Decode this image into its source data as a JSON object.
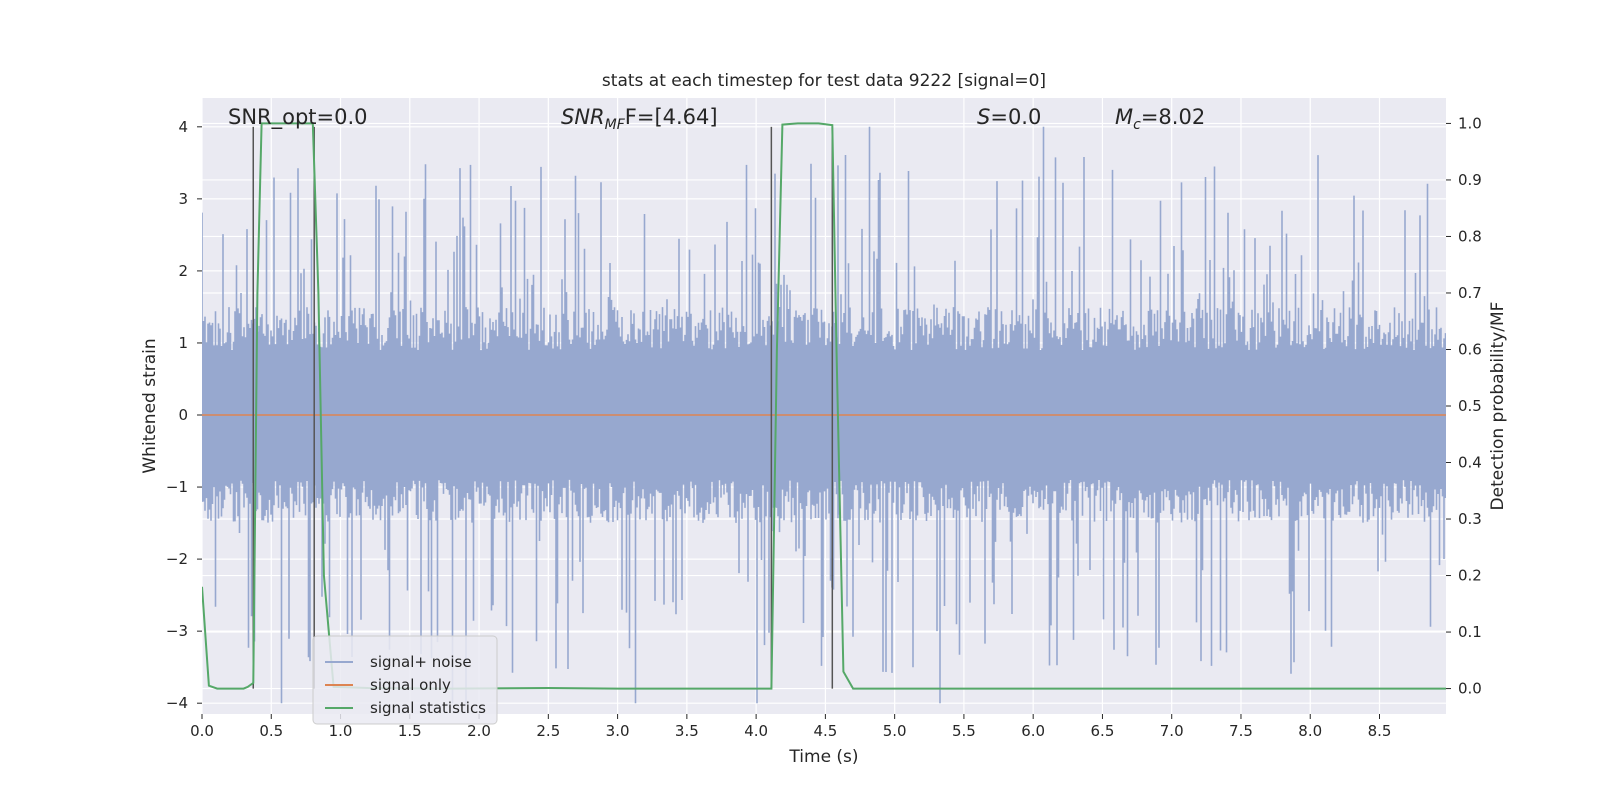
{
  "chart_data": {
    "type": "line",
    "title": "stats at each timestep for test data 9222 [signal=0]",
    "xlabel": "Time (s)",
    "ylabel": "Whitened strain",
    "y2label": "Detection probability/MF",
    "xlim": [
      0.0,
      8.98
    ],
    "ylim": [
      -4.15,
      4.4
    ],
    "y2lim": [
      -0.045,
      1.045
    ],
    "xticks": [
      "0.0",
      "0.5",
      "1.0",
      "1.5",
      "2.0",
      "2.5",
      "3.0",
      "3.5",
      "4.0",
      "4.5",
      "5.0",
      "5.5",
      "6.0",
      "6.5",
      "7.0",
      "7.5",
      "8.0",
      "8.5"
    ],
    "yticks": [
      "4",
      "3",
      "2",
      "1",
      "0",
      "−1",
      "−2",
      "−3",
      "−4"
    ],
    "y2ticks": [
      "1.0",
      "0.9",
      "0.8",
      "0.7",
      "0.6",
      "0.5",
      "0.4",
      "0.3",
      "0.2",
      "0.1",
      "0.0"
    ],
    "grid": true,
    "legend_position": "lower-left",
    "annotations": {
      "snr_opt": "SNR_opt=0.0",
      "snr_mf_main": "SNR",
      "snr_mf_sub": "MF",
      "snr_mf_value": "F=[4.64]",
      "s_var": "S",
      "s_value": "=0.0",
      "mc_var": "M",
      "mc_sub": "c",
      "mc_value": "=8.02"
    },
    "vertical_markers": [
      0.37,
      0.81,
      4.11,
      4.55
    ],
    "series": [
      {
        "name": "signal+ noise",
        "color": "#97a8cf",
        "axis": "left",
        "description": "whitened noise, ~4096 Hz samples",
        "envelope": {
          "core_abs": 0.9,
          "typical_abs": 1.9,
          "max_abs": 4.0,
          "duration": 8.98
        }
      },
      {
        "name": "signal only",
        "color": "#dd8452",
        "axis": "left",
        "x": [
          0.0,
          8.98
        ],
        "y": [
          0.0,
          0.0
        ]
      },
      {
        "name": "signal statistics",
        "color": "#55a868",
        "axis": "right",
        "x": [
          0.0,
          0.05,
          0.11,
          0.2,
          0.3,
          0.33,
          0.37,
          0.4,
          0.43,
          0.6,
          0.8,
          0.84,
          0.88,
          0.95,
          1.2,
          1.8,
          2.5,
          3.0,
          3.5,
          4.11,
          4.15,
          4.19,
          4.3,
          4.45,
          4.55,
          4.58,
          4.63,
          4.7,
          5.0,
          6.0,
          7.0,
          8.0,
          8.98
        ],
        "y": [
          0.18,
          0.005,
          0.0,
          0.0,
          0.0,
          0.003,
          0.01,
          0.7,
          1.0,
          1.0,
          1.0,
          0.7,
          0.2,
          0.003,
          0.001,
          0.0,
          0.001,
          0.0,
          0.0,
          0.0,
          0.6,
          0.998,
          1.0,
          1.0,
          0.997,
          0.6,
          0.03,
          0.0,
          0.0,
          0.0,
          0.0,
          0.0,
          0.0
        ]
      }
    ]
  }
}
